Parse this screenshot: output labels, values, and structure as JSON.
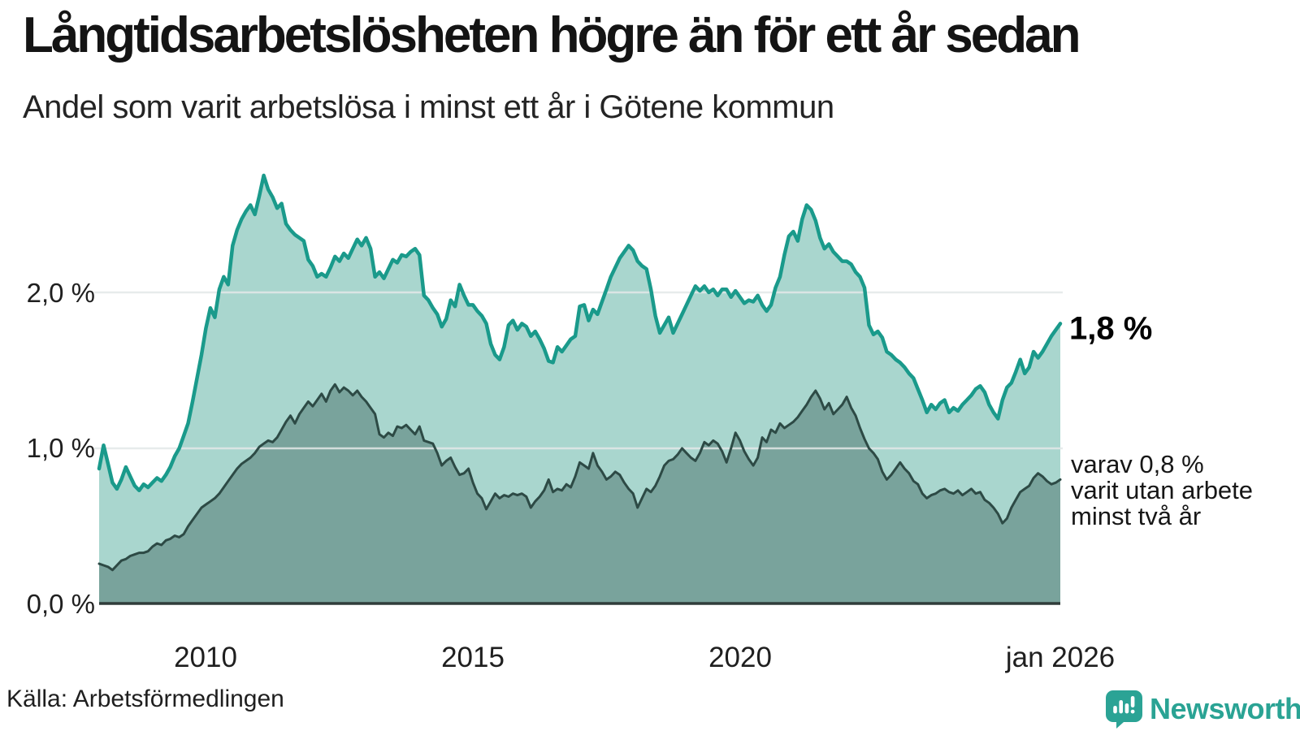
{
  "header": {
    "title": "Långtidsarbetslösheten högre än för ett år sedan",
    "subtitle": "Andel som varit arbetslösa i minst ett år i Götene kommun"
  },
  "chart_data": {
    "type": "area",
    "title": "Långtidsarbetslösheten högre än för ett år sedan",
    "subtitle": "Andel som varit arbetslösa i minst ett år i Götene kommun",
    "x_start": "2008-01",
    "x_end": "2026-01",
    "interval": "monthly",
    "unit": "%",
    "ylim": [
      0,
      2.9
    ],
    "grid": "horizontal",
    "y_ticks": [
      0,
      1,
      2
    ],
    "y_tick_labels": [
      "0,0 %",
      "1,0 %",
      "2,0 %"
    ],
    "x_tick_positions": [
      24,
      84,
      144,
      216
    ],
    "x_tick_labels": [
      "2010",
      "2015",
      "2020",
      "jan 2026"
    ],
    "colors": {
      "longterm_line": "#1a9a8b",
      "longterm_fill": "#a9d6ce",
      "verylongterm_line": "#2d4a45",
      "verylongterm_fill": "#79a39c",
      "gridline": "#e3e7e8",
      "axis": "#303c3a"
    },
    "series": [
      {
        "name": "Andel som varit arbetslösa i minst ett år",
        "end_value": 1.8,
        "values": [
          0.87,
          1.02,
          0.9,
          0.78,
          0.74,
          0.8,
          0.88,
          0.82,
          0.76,
          0.73,
          0.77,
          0.75,
          0.78,
          0.81,
          0.79,
          0.83,
          0.88,
          0.95,
          1.0,
          1.08,
          1.16,
          1.3,
          1.45,
          1.6,
          1.77,
          1.9,
          1.84,
          2.02,
          2.1,
          2.05,
          2.3,
          2.4,
          2.47,
          2.52,
          2.56,
          2.5,
          2.62,
          2.75,
          2.66,
          2.61,
          2.54,
          2.57,
          2.44,
          2.4,
          2.37,
          2.35,
          2.33,
          2.21,
          2.17,
          2.1,
          2.12,
          2.1,
          2.16,
          2.23,
          2.2,
          2.25,
          2.22,
          2.28,
          2.34,
          2.3,
          2.35,
          2.28,
          2.1,
          2.13,
          2.09,
          2.15,
          2.21,
          2.19,
          2.24,
          2.23,
          2.26,
          2.28,
          2.24,
          1.98,
          1.95,
          1.9,
          1.86,
          1.78,
          1.83,
          1.95,
          1.91,
          2.05,
          1.98,
          1.92,
          1.92,
          1.88,
          1.85,
          1.8,
          1.67,
          1.6,
          1.57,
          1.65,
          1.79,
          1.82,
          1.76,
          1.8,
          1.78,
          1.72,
          1.75,
          1.7,
          1.64,
          1.56,
          1.55,
          1.65,
          1.62,
          1.66,
          1.7,
          1.72,
          1.91,
          1.92,
          1.82,
          1.89,
          1.86,
          1.94,
          2.02,
          2.1,
          2.16,
          2.22,
          2.26,
          2.3,
          2.27,
          2.2,
          2.17,
          2.15,
          2.02,
          1.85,
          1.74,
          1.79,
          1.84,
          1.74,
          1.8,
          1.86,
          1.92,
          1.98,
          2.04,
          2.01,
          2.04,
          2.0,
          2.02,
          1.98,
          2.02,
          2.02,
          1.97,
          2.01,
          1.97,
          1.93,
          1.95,
          1.94,
          1.98,
          1.92,
          1.88,
          1.92,
          2.03,
          2.1,
          2.24,
          2.36,
          2.39,
          2.33,
          2.47,
          2.56,
          2.53,
          2.46,
          2.35,
          2.28,
          2.31,
          2.26,
          2.23,
          2.2,
          2.2,
          2.18,
          2.13,
          2.1,
          2.03,
          1.79,
          1.73,
          1.75,
          1.71,
          1.62,
          1.6,
          1.57,
          1.55,
          1.52,
          1.48,
          1.45,
          1.38,
          1.31,
          1.23,
          1.28,
          1.25,
          1.29,
          1.31,
          1.23,
          1.26,
          1.24,
          1.28,
          1.31,
          1.34,
          1.38,
          1.4,
          1.36,
          1.28,
          1.23,
          1.19,
          1.31,
          1.39,
          1.42,
          1.49,
          1.57,
          1.48,
          1.52,
          1.62,
          1.58,
          1.62,
          1.67,
          1.72,
          1.76,
          1.8
        ]
      },
      {
        "name": "varav utan arbete minst två år",
        "end_value": 0.8,
        "values": [
          0.26,
          0.25,
          0.24,
          0.22,
          0.25,
          0.28,
          0.29,
          0.31,
          0.32,
          0.33,
          0.33,
          0.34,
          0.37,
          0.39,
          0.38,
          0.41,
          0.42,
          0.44,
          0.43,
          0.45,
          0.5,
          0.54,
          0.58,
          0.62,
          0.64,
          0.66,
          0.68,
          0.71,
          0.75,
          0.79,
          0.83,
          0.87,
          0.9,
          0.92,
          0.94,
          0.97,
          1.01,
          1.03,
          1.05,
          1.04,
          1.07,
          1.12,
          1.17,
          1.21,
          1.16,
          1.22,
          1.26,
          1.3,
          1.27,
          1.31,
          1.35,
          1.3,
          1.37,
          1.41,
          1.36,
          1.39,
          1.37,
          1.34,
          1.37,
          1.33,
          1.3,
          1.26,
          1.22,
          1.09,
          1.07,
          1.1,
          1.08,
          1.14,
          1.13,
          1.15,
          1.12,
          1.09,
          1.14,
          1.05,
          1.04,
          1.03,
          0.97,
          0.89,
          0.92,
          0.94,
          0.88,
          0.83,
          0.84,
          0.87,
          0.78,
          0.71,
          0.68,
          0.61,
          0.66,
          0.71,
          0.68,
          0.7,
          0.69,
          0.71,
          0.7,
          0.71,
          0.69,
          0.62,
          0.66,
          0.69,
          0.73,
          0.8,
          0.72,
          0.74,
          0.73,
          0.77,
          0.75,
          0.82,
          0.91,
          0.89,
          0.87,
          0.97,
          0.89,
          0.85,
          0.8,
          0.82,
          0.85,
          0.83,
          0.78,
          0.74,
          0.71,
          0.62,
          0.68,
          0.74,
          0.72,
          0.76,
          0.82,
          0.89,
          0.92,
          0.93,
          0.96,
          1.0,
          0.97,
          0.94,
          0.92,
          0.97,
          1.04,
          1.02,
          1.05,
          1.03,
          0.98,
          0.91,
          1.0,
          1.1,
          1.05,
          0.98,
          0.93,
          0.89,
          0.94,
          1.07,
          1.04,
          1.12,
          1.1,
          1.16,
          1.13,
          1.15,
          1.17,
          1.2,
          1.24,
          1.28,
          1.33,
          1.37,
          1.32,
          1.25,
          1.29,
          1.22,
          1.25,
          1.28,
          1.33,
          1.26,
          1.21,
          1.13,
          1.06,
          1.0,
          0.97,
          0.93,
          0.85,
          0.8,
          0.83,
          0.87,
          0.91,
          0.87,
          0.84,
          0.79,
          0.77,
          0.71,
          0.68,
          0.7,
          0.71,
          0.73,
          0.74,
          0.72,
          0.71,
          0.73,
          0.7,
          0.72,
          0.74,
          0.71,
          0.72,
          0.67,
          0.65,
          0.62,
          0.58,
          0.52,
          0.55,
          0.62,
          0.67,
          0.72,
          0.74,
          0.76,
          0.81,
          0.84,
          0.82,
          0.79,
          0.77,
          0.78,
          0.8
        ]
      }
    ],
    "end_labels": {
      "primary": "1,8 %",
      "secondary": [
        "varav 0,8 %",
        "varit utan arbete",
        "minst två år"
      ]
    }
  },
  "footer": {
    "source": "Källa: Arbetsförmedlingen",
    "brand": "Newsworthy"
  }
}
